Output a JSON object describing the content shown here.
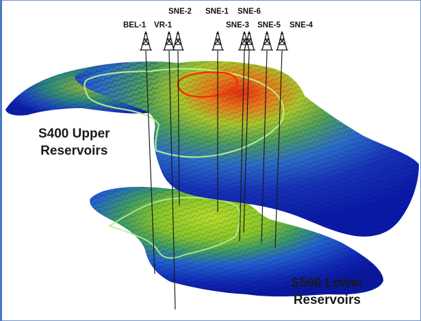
{
  "wells": [
    {
      "name": "BEL-1"
    },
    {
      "name": "VR-1"
    },
    {
      "name": "SNE-2"
    },
    {
      "name": "SNE-1"
    },
    {
      "name": "SNE-6"
    },
    {
      "name": "SNE-3"
    },
    {
      "name": "SNE-5"
    },
    {
      "name": "SNE-4"
    }
  ],
  "reservoirs": {
    "upper": {
      "line1": "S400 Upper",
      "line2": "Reservoirs"
    },
    "lower": {
      "line1": "S500 Lower",
      "line2": "Reservoirs"
    }
  },
  "colors": {
    "deep": "#0a1fb8",
    "mid": "#1f72d6",
    "shallow_green": "#8fcf2a",
    "crest": "#e33a10",
    "contour": "#b8f08a",
    "crest_contour": "#ff2a00",
    "frame": "#6f93c9"
  }
}
